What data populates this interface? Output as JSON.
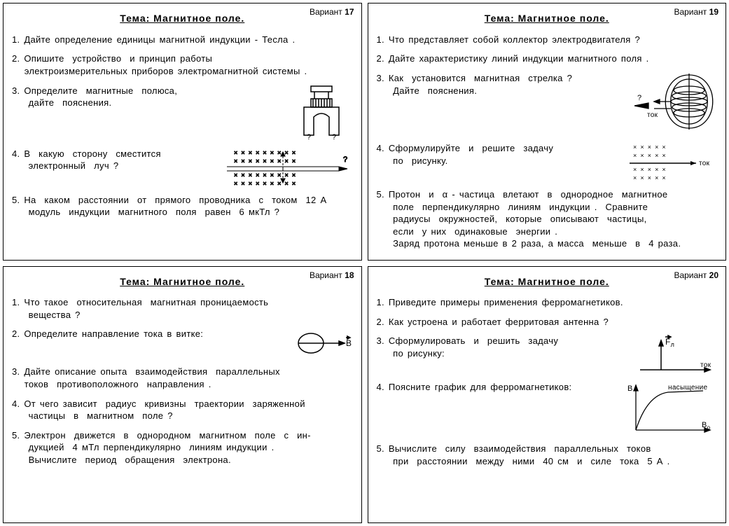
{
  "cards": [
    {
      "variant_label": "Вариант",
      "variant_num": "17",
      "topic": "Тема:  Магнитное  поле.",
      "q1": "1. Дайте  определение  единицы магнитной индукции - Тесла .",
      "q2": "2. Опишите  устройство  и принцип работы\n   электроизмерительных приборов электромагнитной системы .",
      "q3": "3. Определите  магнитные  полюса,\n    дайте  пояснения.",
      "q4": "4. В  какую  сторону  сместится\n    электронный  луч ?",
      "q5": "5. На  каком  расстоянии  от  прямого  проводника  с  током  12 А\n    модуль  индукции  магнитного  поля  равен  6 мкТл ?"
    },
    {
      "variant_label": "Вариант",
      "variant_num": "19",
      "topic": "Тема:  Магнитное  поле.",
      "q1": "1. Что  представляет  собой  коллектор  электродвигателя ?",
      "q2": "2. Дайте  характеристику  линий  индукции магнитного  поля .",
      "q3": "3. Как  установится  магнитная  стрелка ?\n    Дайте  пояснения.",
      "q3_label": "ток",
      "q4": "4. Сформулируйте  и  решите  задачу\n    по  рисунку.",
      "q4_label": "ток",
      "q5": "5. Протон  и  α - частица  влетают  в  однородное  магнитное\n    поле  перпендикулярно  линиям  индукции .  Сравните\n    радиусы  окружностей,  которые  описывают  частицы,\n    если  у них  одинаковые  энергии .\n    Заряд протона меньше в 2 раза, а масса  меньше  в  4 раза."
    },
    {
      "variant_label": "Вариант",
      "variant_num": "18",
      "topic": "Тема:  Магнитное  поле.",
      "q1": "1. Что такое  относительная  магнитная проницаемость\n    вещества ?",
      "q2": "2. Определите направление тока  в  витке:",
      "q2_label": "B",
      "q3": "3. Дайте описание опыта  взаимодействия  параллельных\n   токов  противоположного  направления .",
      "q4": "4. От чего зависит  радиус  кривизны  траектории  заряженной\n    частицы  в  магнитном  поле ?",
      "q5": "5. Электрон  движется  в  однородном  магнитном  поле  с  ин-\n    дукцией  4 мТл перпендикулярно  линиям индукции .\n    Вычислите  период  обращения  электрона."
    },
    {
      "variant_label": "Вариант",
      "variant_num": "20",
      "topic": "Тема:  Магнитное  поле.",
      "q1": "1. Приведите примеры  применения  ферромагнетиков.",
      "q2": "2. Как  устроена  и  работает  ферритовая  антенна ?",
      "q3": "3. Сформулировать  и  решить  задачу\n    по рисунку:",
      "q3_force": "F",
      "q3_sub": "л",
      "q3_tok": "ток",
      "q4": "4. Поясните  график  для  ферромагнетиков:",
      "q4_B": "B",
      "q4_Bo": "B",
      "q4_o": "о",
      "q4_sat": "насыщение",
      "q5": "5. Вычислите  силу  взаимодействия  параллельных  токов\n    при  расстоянии  между  ними  40 см  и  силе  тока  5 А ."
    }
  ],
  "colors": {
    "stroke": "#000000",
    "bg": "#ffffff"
  }
}
